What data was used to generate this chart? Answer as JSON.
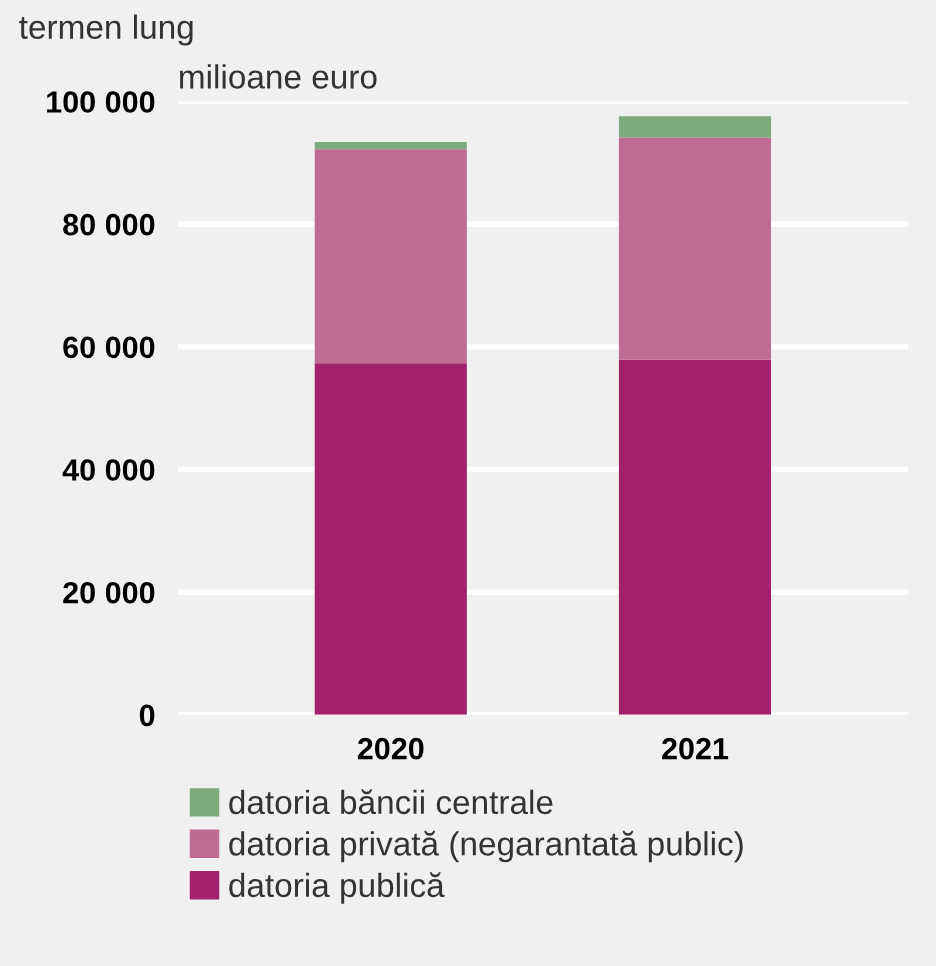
{
  "chart_data": {
    "type": "bar",
    "title": "termen lung",
    "ylabel": "milioane euro",
    "categories": [
      "2020",
      "2021"
    ],
    "stacked": true,
    "series": [
      {
        "name": "datoria publică",
        "color": "#a3206a",
        "values": [
          57300,
          57900
        ]
      },
      {
        "name": "datoria privată (negarantată public)",
        "color": "#bf6b94",
        "values": [
          34900,
          36200
        ]
      },
      {
        "name": "datoria băncii centrale",
        "color": "#7daa7f",
        "values": [
          1200,
          3500
        ]
      }
    ],
    "ylim": [
      0,
      100000
    ],
    "yticks": [
      {
        "value": 0,
        "label": "0"
      },
      {
        "value": 20000,
        "label": "20 000"
      },
      {
        "value": 40000,
        "label": "40 000"
      },
      {
        "value": 60000,
        "label": "60 000"
      },
      {
        "value": 80000,
        "label": "80 000"
      },
      {
        "value": 100000,
        "label": "100 000"
      }
    ],
    "grid": "y",
    "legend": "bottom"
  }
}
